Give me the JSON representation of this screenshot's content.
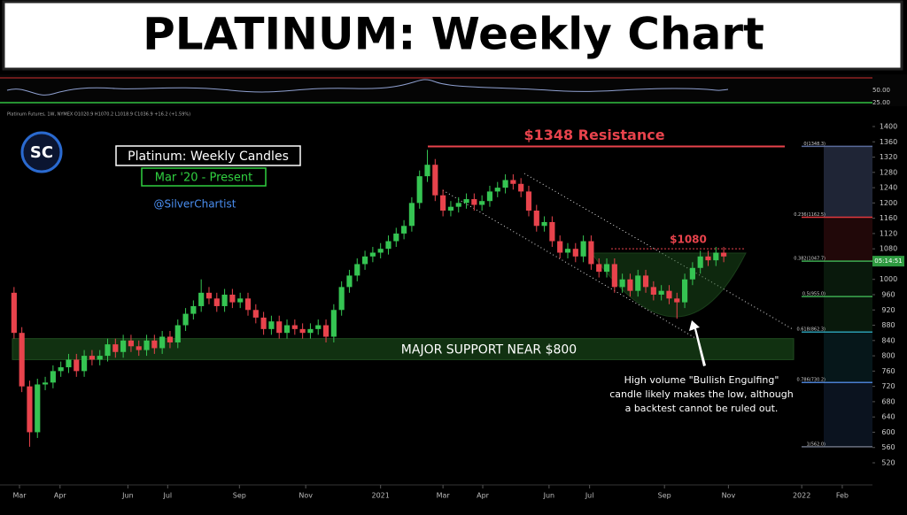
{
  "chart_data": {
    "type": "candlestick",
    "title": "PLATINUM: Weekly Chart",
    "ticker_line": "Platinum Futures, 1W, NYMEX  O1020.9 H1070.2 L1018.9 C1036.9 +16.2 (+1.59%)",
    "logo": "SC",
    "box_title": "Platinum: Weekly Candles",
    "box_subtitle": "Mar '20 - Present",
    "handle": "@SilverChartist",
    "resistance": {
      "value": 1348,
      "label": "$1348 Resistance"
    },
    "level": {
      "value": 1080,
      "label": "$1080"
    },
    "support_zone": {
      "values": [
        790,
        845
      ],
      "label": "MAJOR SUPPORT NEAR $800"
    },
    "note": [
      "High volume \"Bullish Engulfing\"",
      "candle likely makes the low, although",
      "a backtest cannot be ruled out."
    ],
    "countdown": "05:14:51",
    "up_color": "#35c452",
    "down_color": "#e8434c",
    "open": [
      965,
      860,
      720,
      600,
      725,
      730,
      760,
      770,
      790,
      760,
      800,
      790,
      800,
      830,
      810,
      840,
      825,
      815,
      840,
      820,
      850,
      835,
      880,
      910,
      930,
      965,
      950,
      930,
      960,
      940,
      950,
      920,
      900,
      870,
      890,
      860,
      880,
      870,
      860,
      870,
      880,
      850,
      920,
      980,
      1010,
      1040,
      1060,
      1070,
      1080,
      1100,
      1120,
      1140,
      1200,
      1270,
      1300,
      1220,
      1180,
      1190,
      1200,
      1210,
      1195,
      1205,
      1230,
      1240,
      1260,
      1250,
      1230,
      1180,
      1140,
      1150,
      1100,
      1070,
      1080,
      1060,
      1100,
      1040,
      1020,
      1040,
      980,
      1000,
      970,
      1010,
      980,
      960,
      970,
      950,
      940,
      1000,
      1030,
      1060,
      1050,
      1070
    ],
    "high": [
      980,
      875,
      735,
      740,
      745,
      775,
      785,
      805,
      805,
      815,
      815,
      815,
      845,
      845,
      855,
      855,
      840,
      855,
      855,
      865,
      865,
      895,
      925,
      945,
      1000,
      980,
      965,
      975,
      975,
      965,
      965,
      935,
      915,
      905,
      905,
      895,
      895,
      885,
      885,
      895,
      895,
      935,
      995,
      1025,
      1055,
      1075,
      1085,
      1095,
      1115,
      1135,
      1155,
      1215,
      1285,
      1339,
      1315,
      1235,
      1205,
      1215,
      1225,
      1225,
      1220,
      1245,
      1255,
      1275,
      1275,
      1265,
      1245,
      1195,
      1165,
      1165,
      1115,
      1095,
      1095,
      1115,
      1115,
      1055,
      1055,
      1055,
      1015,
      1015,
      1025,
      1025,
      995,
      985,
      985,
      965,
      1015,
      1045,
      1075,
      1075,
      1085,
      1085
    ],
    "low": [
      845,
      705,
      562,
      585,
      710,
      715,
      745,
      755,
      745,
      745,
      775,
      775,
      785,
      795,
      795,
      810,
      800,
      800,
      805,
      805,
      820,
      820,
      865,
      895,
      915,
      935,
      915,
      915,
      925,
      925,
      905,
      885,
      855,
      855,
      845,
      845,
      855,
      845,
      845,
      855,
      835,
      835,
      905,
      965,
      995,
      1025,
      1045,
      1055,
      1065,
      1085,
      1105,
      1125,
      1185,
      1255,
      1205,
      1165,
      1165,
      1175,
      1185,
      1180,
      1180,
      1190,
      1215,
      1225,
      1235,
      1215,
      1165,
      1125,
      1125,
      1085,
      1055,
      1055,
      1045,
      1045,
      1025,
      1005,
      1005,
      965,
      965,
      955,
      955,
      965,
      945,
      945,
      935,
      897,
      925,
      985,
      1015,
      1035,
      1035,
      1045
    ],
    "close": [
      860,
      720,
      600,
      725,
      730,
      760,
      770,
      790,
      760,
      800,
      790,
      800,
      830,
      810,
      840,
      825,
      815,
      840,
      820,
      850,
      835,
      880,
      910,
      930,
      965,
      950,
      930,
      960,
      940,
      950,
      920,
      900,
      870,
      890,
      860,
      880,
      870,
      860,
      870,
      880,
      850,
      920,
      980,
      1010,
      1040,
      1060,
      1070,
      1080,
      1100,
      1120,
      1140,
      1200,
      1270,
      1300,
      1220,
      1180,
      1190,
      1200,
      1210,
      1195,
      1205,
      1230,
      1240,
      1260,
      1250,
      1230,
      1180,
      1140,
      1150,
      1100,
      1070,
      1080,
      1060,
      1100,
      1040,
      1020,
      1040,
      980,
      1000,
      970,
      1010,
      980,
      960,
      970,
      950,
      940,
      1000,
      1030,
      1060,
      1050,
      1070,
      1060
    ],
    "ylim": [
      520,
      1400
    ],
    "yticks": [
      520,
      560,
      600,
      640,
      680,
      720,
      760,
      800,
      840,
      880,
      920,
      960,
      1000,
      1040,
      1080,
      1120,
      1160,
      1200,
      1240,
      1280,
      1320,
      1360,
      1400
    ],
    "xlim": [
      -1.8,
      112
    ],
    "xticks": [
      {
        "value": 0.7,
        "label": "Mar"
      },
      {
        "value": 5.9,
        "label": "Apr"
      },
      {
        "value": 14.6,
        "label": "Jun"
      },
      {
        "value": 19.7,
        "label": "Jul"
      },
      {
        "value": 28.9,
        "label": "Sep"
      },
      {
        "value": 37.4,
        "label": "Nov"
      },
      {
        "value": 47,
        "label": "2021"
      },
      {
        "value": 55,
        "label": "Mar"
      },
      {
        "value": 60.1,
        "label": "Apr"
      },
      {
        "value": 68.6,
        "label": "Jun"
      },
      {
        "value": 73.8,
        "label": "Jul"
      },
      {
        "value": 83.4,
        "label": "Sep"
      },
      {
        "value": 91.6,
        "label": "Nov"
      },
      {
        "value": 101,
        "label": "2022"
      },
      {
        "value": 106.2,
        "label": "Feb"
      }
    ],
    "fib": [
      {
        "value": 1348.3,
        "label": "0(1348.3)"
      },
      {
        "value": 1162.5,
        "label": "0.236(1162.5)"
      },
      {
        "value": 1047.7,
        "label": "0.382(1047.7)"
      },
      {
        "value": 955.0,
        "label": "0.5(955.0)"
      },
      {
        "value": 862.3,
        "label": "0.618(862.3)"
      },
      {
        "value": 730.2,
        "label": "0.786(730.2)"
      },
      {
        "value": 562.0,
        "label": "1(562.0)"
      }
    ],
    "fib_colors": [
      "#5a6b9a",
      "#e0383e",
      "#3caa50",
      "#3caa50",
      "#2a9bb0",
      "#4a7fd0",
      "#6a7080"
    ],
    "rsi_ticks": [
      {
        "value": 50,
        "label": "50.00"
      },
      {
        "value": 25,
        "label": "25.00"
      }
    ]
  }
}
